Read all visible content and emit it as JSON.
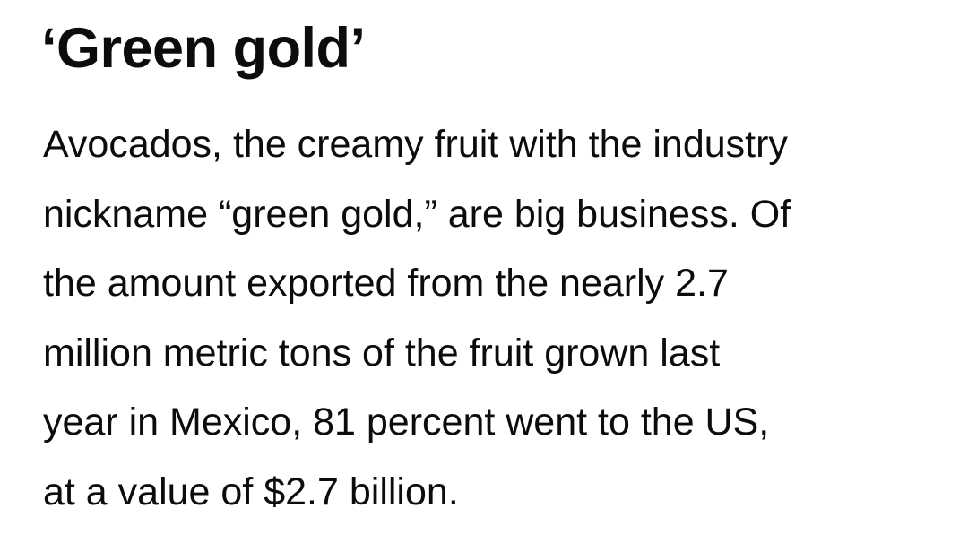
{
  "article": {
    "heading": "‘Green gold’",
    "paragraph_lines": [
      "Avocados, the creamy fruit with the industry",
      "nickname “green gold,” are big business. Of",
      "the amount exported from the nearly 2.7",
      "million metric tons of the fruit grown last",
      "year in Mexico, 81 percent went to the US,",
      "at a value of $2.7 billion."
    ]
  }
}
